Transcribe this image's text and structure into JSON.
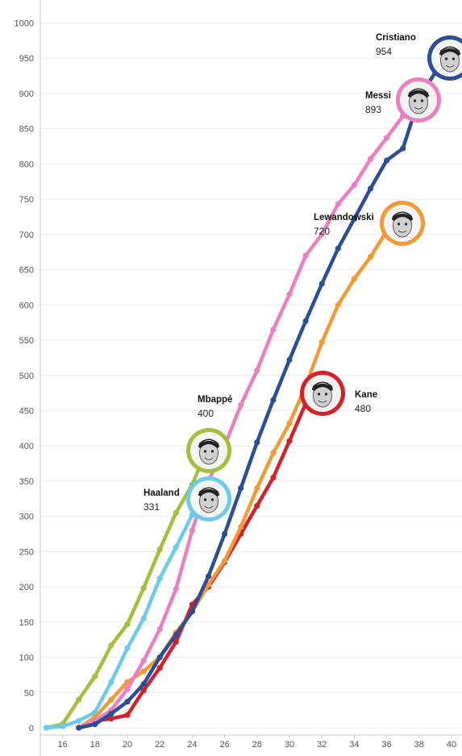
{
  "chart_data": {
    "type": "line",
    "title": "",
    "xlabel": "",
    "ylabel": "",
    "xlim": [
      15,
      40
    ],
    "ylim": [
      0,
      1000
    ],
    "x_ticks": [
      "16",
      "18",
      "20",
      "22",
      "24",
      "26",
      "28",
      "30",
      "32",
      "34",
      "36",
      "38",
      "40"
    ],
    "y_ticks": [
      "0",
      "50",
      "100",
      "150",
      "200",
      "250",
      "300",
      "350",
      "400",
      "450",
      "500",
      "550",
      "600",
      "650",
      "700",
      "750",
      "800",
      "850",
      "900",
      "950",
      "1000"
    ],
    "grid": "horizontal",
    "legend": "none",
    "series": [
      {
        "name": "Cristiano",
        "value_label": "954",
        "color": "#2c4e98",
        "icon": "cristiano-portrait-icon",
        "x": [
          17,
          18,
          19,
          20,
          21,
          22,
          23,
          24,
          25,
          26,
          27,
          28,
          29,
          30,
          31,
          32,
          33,
          34,
          35,
          36,
          37,
          38,
          39,
          40
        ],
        "y": [
          0,
          5,
          20,
          37,
          62,
          100,
          132,
          165,
          215,
          275,
          340,
          405,
          465,
          522,
          577,
          630,
          680,
          722,
          765,
          805,
          822,
          893,
          930,
          954
        ]
      },
      {
        "name": "Messi",
        "value_label": "893",
        "color": "#ea7fc1",
        "icon": "messi-portrait-icon",
        "x": [
          17,
          18,
          19,
          20,
          21,
          22,
          23,
          24,
          25,
          26,
          27,
          28,
          29,
          30,
          31,
          32,
          33,
          34,
          35,
          36,
          37,
          38
        ],
        "y": [
          0,
          10,
          25,
          55,
          95,
          140,
          197,
          280,
          350,
          400,
          458,
          507,
          565,
          615,
          670,
          700,
          743,
          770,
          807,
          837,
          868,
          893
        ]
      },
      {
        "name": "Lewandowski",
        "value_label": "720",
        "color": "#f49a35",
        "icon": "lewandowski-portrait-icon",
        "x": [
          17,
          18,
          19,
          20,
          21,
          22,
          23,
          24,
          25,
          26,
          27,
          28,
          29,
          30,
          31,
          32,
          33,
          34,
          35,
          36,
          37
        ],
        "y": [
          0,
          15,
          40,
          65,
          80,
          100,
          135,
          165,
          203,
          237,
          285,
          340,
          390,
          432,
          485,
          547,
          600,
          637,
          668,
          705,
          720
        ]
      },
      {
        "name": "Kane",
        "value_label": "480",
        "color": "#d71f27",
        "icon": "kane-portrait-icon",
        "x": [
          17,
          18,
          19,
          20,
          21,
          22,
          23,
          24,
          25,
          26,
          27,
          28,
          29,
          30,
          31,
          32
        ],
        "y": [
          0,
          10,
          13,
          18,
          53,
          85,
          122,
          175,
          200,
          235,
          275,
          315,
          355,
          407,
          460,
          480
        ]
      },
      {
        "name": "Mbappé",
        "value_label": "400",
        "color": "#a4bf3a",
        "icon": "mbappe-portrait-icon",
        "x": [
          15,
          16,
          17,
          18,
          19,
          20,
          21,
          22,
          23,
          24,
          25
        ],
        "y": [
          0,
          5,
          40,
          73,
          117,
          147,
          198,
          253,
          305,
          345,
          400
        ]
      },
      {
        "name": "Haaland",
        "value_label": "331",
        "color": "#6accea",
        "icon": "haaland-portrait-icon",
        "x": [
          15,
          16,
          17,
          18,
          19,
          20,
          21,
          22,
          23,
          24,
          25
        ],
        "y": [
          0,
          2,
          10,
          22,
          65,
          113,
          155,
          212,
          256,
          302,
          331
        ]
      }
    ]
  }
}
